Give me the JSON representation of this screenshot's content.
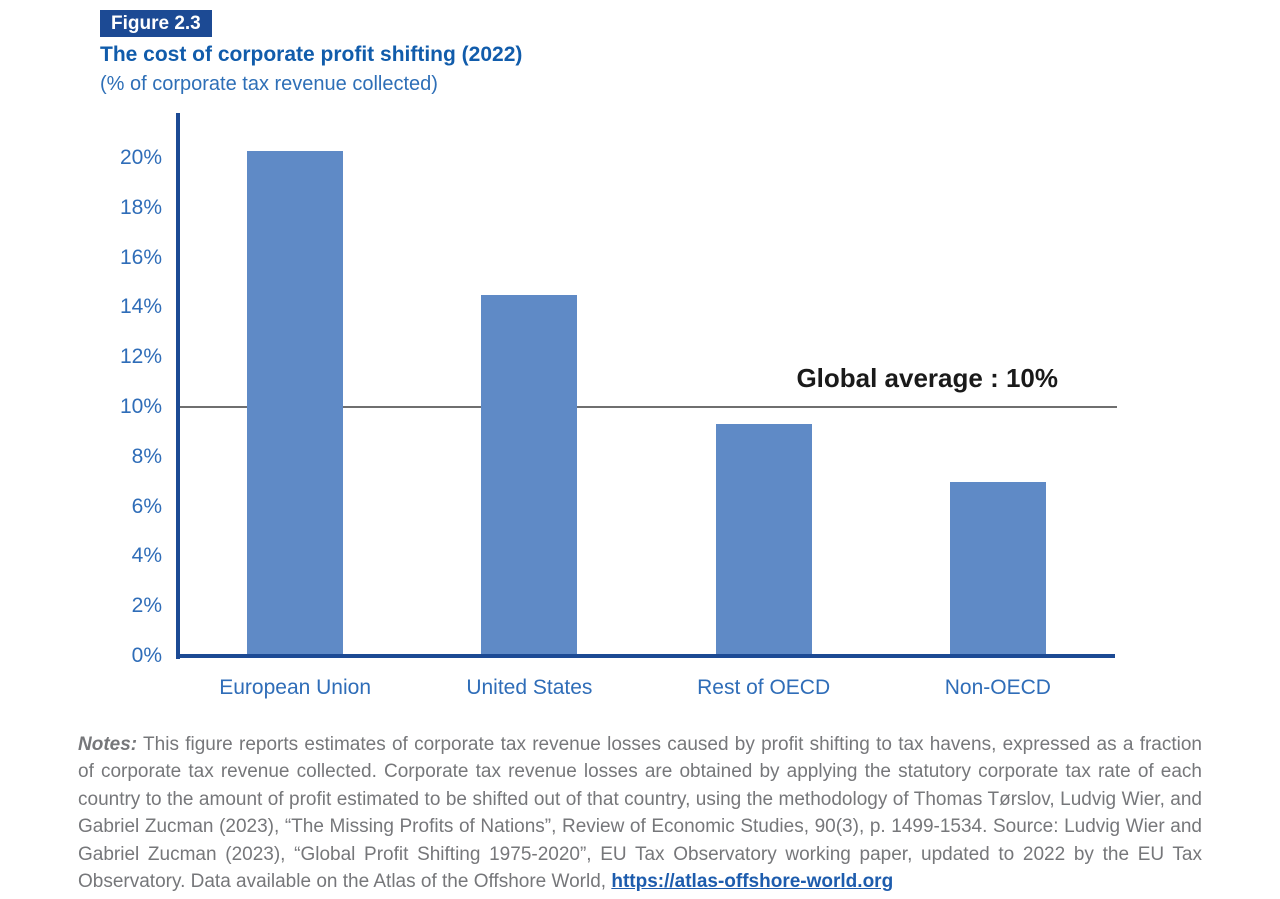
{
  "header": {
    "figure_label": "Figure 2.3"
  },
  "chart_data": {
    "type": "bar",
    "title": "The cost of corporate profit shifting (2022)",
    "subtitle": "(% of corporate tax revenue collected)",
    "categories": [
      "European Union",
      "United States",
      "Rest of OECD",
      "Non-OECD"
    ],
    "values": [
      20.3,
      14.5,
      9.3,
      7.0
    ],
    "ylim": [
      0,
      21.8
    ],
    "yticks": [
      0,
      2,
      4,
      6,
      8,
      10,
      12,
      14,
      16,
      18,
      20
    ],
    "tick_suffix": "%",
    "reference_line": {
      "value": 10,
      "label": "Global average : 10%"
    },
    "legend": "none",
    "grid": "off",
    "colors": {
      "bar": "#5f8ac6",
      "axis": "#1c4a94",
      "tick_labels": "#2f6db8",
      "reference_line": "#6f6f6f",
      "badge_background": "#1c4a94",
      "title_text": "#115cab"
    }
  },
  "notes": {
    "label": "Notes:",
    "body": " This figure reports estimates of corporate tax revenue losses caused by profit shifting to tax havens, expressed as a fraction of corporate tax revenue collected. Corporate tax revenue losses are obtained by applying the statutory corporate tax rate of each country to the amount of profit estimated to be shifted out of that country, using the methodology of Thomas Tørslov, Ludvig Wier, and Gabriel Zucman (2023), “The Missing Profits of Nations”, Review of Economic Studies, 90(3), p. 1499-1534. Source: Ludvig Wier and Gabriel Zucman (2023), “Global Profit Shifting 1975-2020”, EU Tax Observatory working paper, updated to 2022 by the EU Tax Observatory. Data available on the Atlas of the Offshore World, ",
    "link": "https://atlas-offshore-world.org"
  }
}
